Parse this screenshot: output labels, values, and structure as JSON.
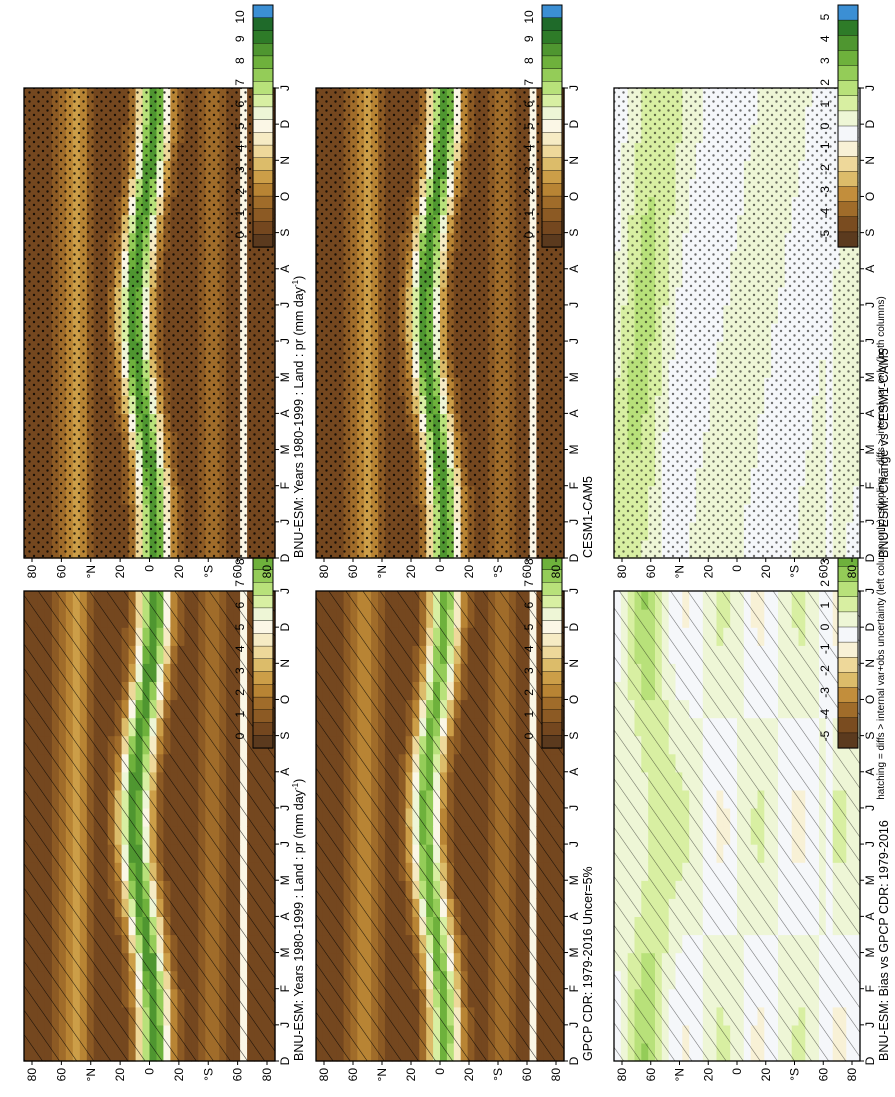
{
  "footer_note": "hatching = diffs > internal var+obs uncertainty (left column only); stippling = diffs > internal var only (both columns)",
  "colors": {
    "abs_scale": [
      "#5b3a1e",
      "#74471f",
      "#8c5a24",
      "#a06c2a",
      "#b88434",
      "#cc9e48",
      "#dcbc6a",
      "#eed89a",
      "#f6ebc4",
      "#fbf7e6",
      "#eef6d6",
      "#d8efa2",
      "#b8e17a",
      "#94cc58",
      "#6eb13c",
      "#4f9630",
      "#2e7b28",
      "#1f6a2a",
      "#3b8fd4"
    ],
    "diff_scale": [
      "#5b3a1e",
      "#7a4c20",
      "#a06c2a",
      "#c28e3c",
      "#dcbc6a",
      "#eed89a",
      "#f8f1d6",
      "#f5f7fa",
      "#eef6d6",
      "#d8efa2",
      "#b8e17a",
      "#94cc58",
      "#6eb13c",
      "#4f9630",
      "#2e7b28",
      "#3b8fd4"
    ]
  },
  "month_labels": [
    "D",
    "J",
    "F",
    "M",
    "A",
    "M",
    "J",
    "J",
    "A",
    "S",
    "O",
    "N",
    "D",
    "J"
  ],
  "lat_labels": [
    "80",
    "60",
    "°N",
    "20",
    "0",
    "20",
    "°S",
    "60",
    "80"
  ],
  "chart_data": [
    {
      "type": "heatmap",
      "title": "BNU-ESM: Years 1980-1999 : Land : pr (mm day",
      "title_sup": "-1",
      "title_end": ")",
      "field": "model",
      "pattern": "hatch",
      "colorbar": [
        "10",
        "9",
        "8",
        "7",
        "6",
        "5",
        "4",
        "3",
        "2",
        "1",
        "0"
      ]
    },
    {
      "type": "heatmap",
      "title": "BNU-ESM: Years 1980-1999 : Land : pr (mm day",
      "title_sup": "-1",
      "title_end": ")",
      "field": "model",
      "pattern": "stipple",
      "colorbar": [
        "10",
        "9",
        "8",
        "7",
        "6",
        "5",
        "4",
        "3",
        "2",
        "1",
        "0"
      ]
    },
    {
      "type": "heatmap",
      "title": "GPCP CDR: 1979-2016 Uncer=5%",
      "field": "obs",
      "pattern": "hatch",
      "colorbar": [
        "10",
        "9",
        "8",
        "7",
        "6",
        "5",
        "4",
        "3",
        "2",
        "1",
        "0"
      ]
    },
    {
      "type": "heatmap",
      "title": "CESM1-CAM5",
      "field": "ref",
      "pattern": "stipple",
      "colorbar": [
        "10",
        "9",
        "8",
        "7",
        "6",
        "5",
        "4",
        "3",
        "2",
        "1",
        "0"
      ]
    },
    {
      "type": "heatmap",
      "title": "BNU-ESM: Bias vs GPCP CDR: 1979-2016",
      "field": "bias",
      "pattern": "hatch",
      "colorbar": [
        "5",
        "4",
        "3",
        "2",
        "1",
        "0",
        "-1",
        "-2",
        "-3",
        "-4",
        "-5"
      ]
    },
    {
      "type": "heatmap",
      "title": "BNU-ESM: Change vs CESM1-CAM5",
      "field": "change",
      "pattern": "stipple",
      "colorbar": [
        "5",
        "4",
        "3",
        "2",
        "1",
        "0",
        "-1",
        "-2",
        "-3",
        "-4",
        "-5"
      ]
    }
  ]
}
